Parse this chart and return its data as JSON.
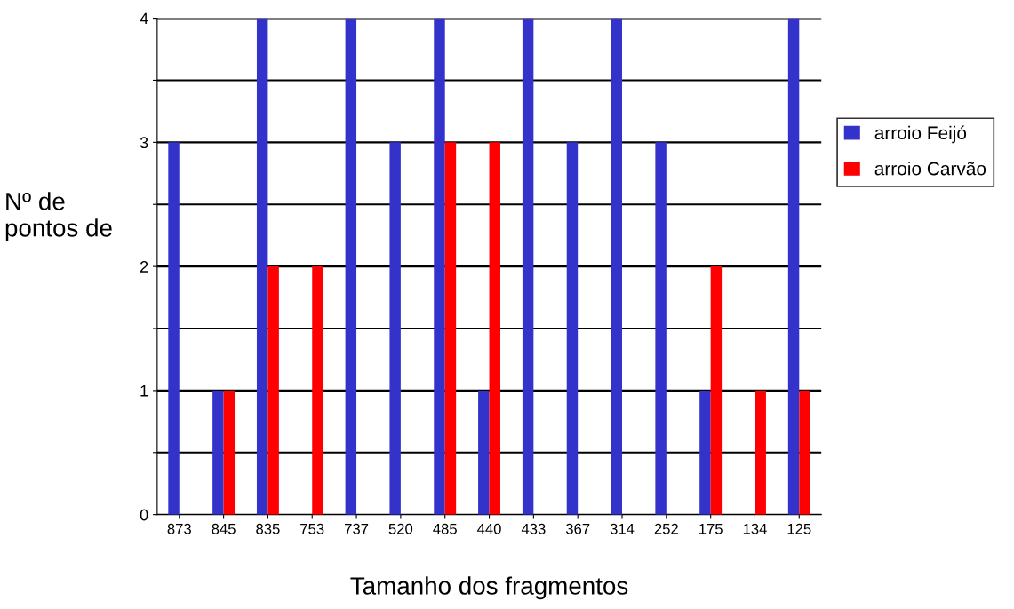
{
  "chart_data": {
    "type": "bar",
    "xlabel": "Tamanho dos fragmentos",
    "ylabel": "Nº de\npontos de",
    "categories": [
      "873",
      "845",
      "835",
      "753",
      "737",
      "520",
      "485",
      "440",
      "433",
      "367",
      "314",
      "252",
      "175",
      "134",
      "125"
    ],
    "series": [
      {
        "name": "arroio Feijó",
        "color": "#3333cc",
        "values": [
          3,
          1,
          4,
          0,
          4,
          3,
          4,
          1,
          4,
          3,
          4,
          3,
          1,
          0,
          4
        ]
      },
      {
        "name": "arroio Carvão",
        "color": "#ff0000",
        "values": [
          0,
          1,
          2,
          2,
          0,
          0,
          3,
          3,
          0,
          0,
          0,
          0,
          2,
          1,
          1
        ]
      }
    ],
    "ylim": [
      0,
      4
    ],
    "yticks": [
      0,
      {
        "value": 0.5,
        "label": null
      },
      1,
      {
        "value": 1.5,
        "label": null
      },
      2,
      {
        "value": 2.5,
        "label": null
      },
      3,
      {
        "value": 3.5,
        "label": null
      },
      4
    ],
    "grid": "y",
    "legend": "right"
  }
}
